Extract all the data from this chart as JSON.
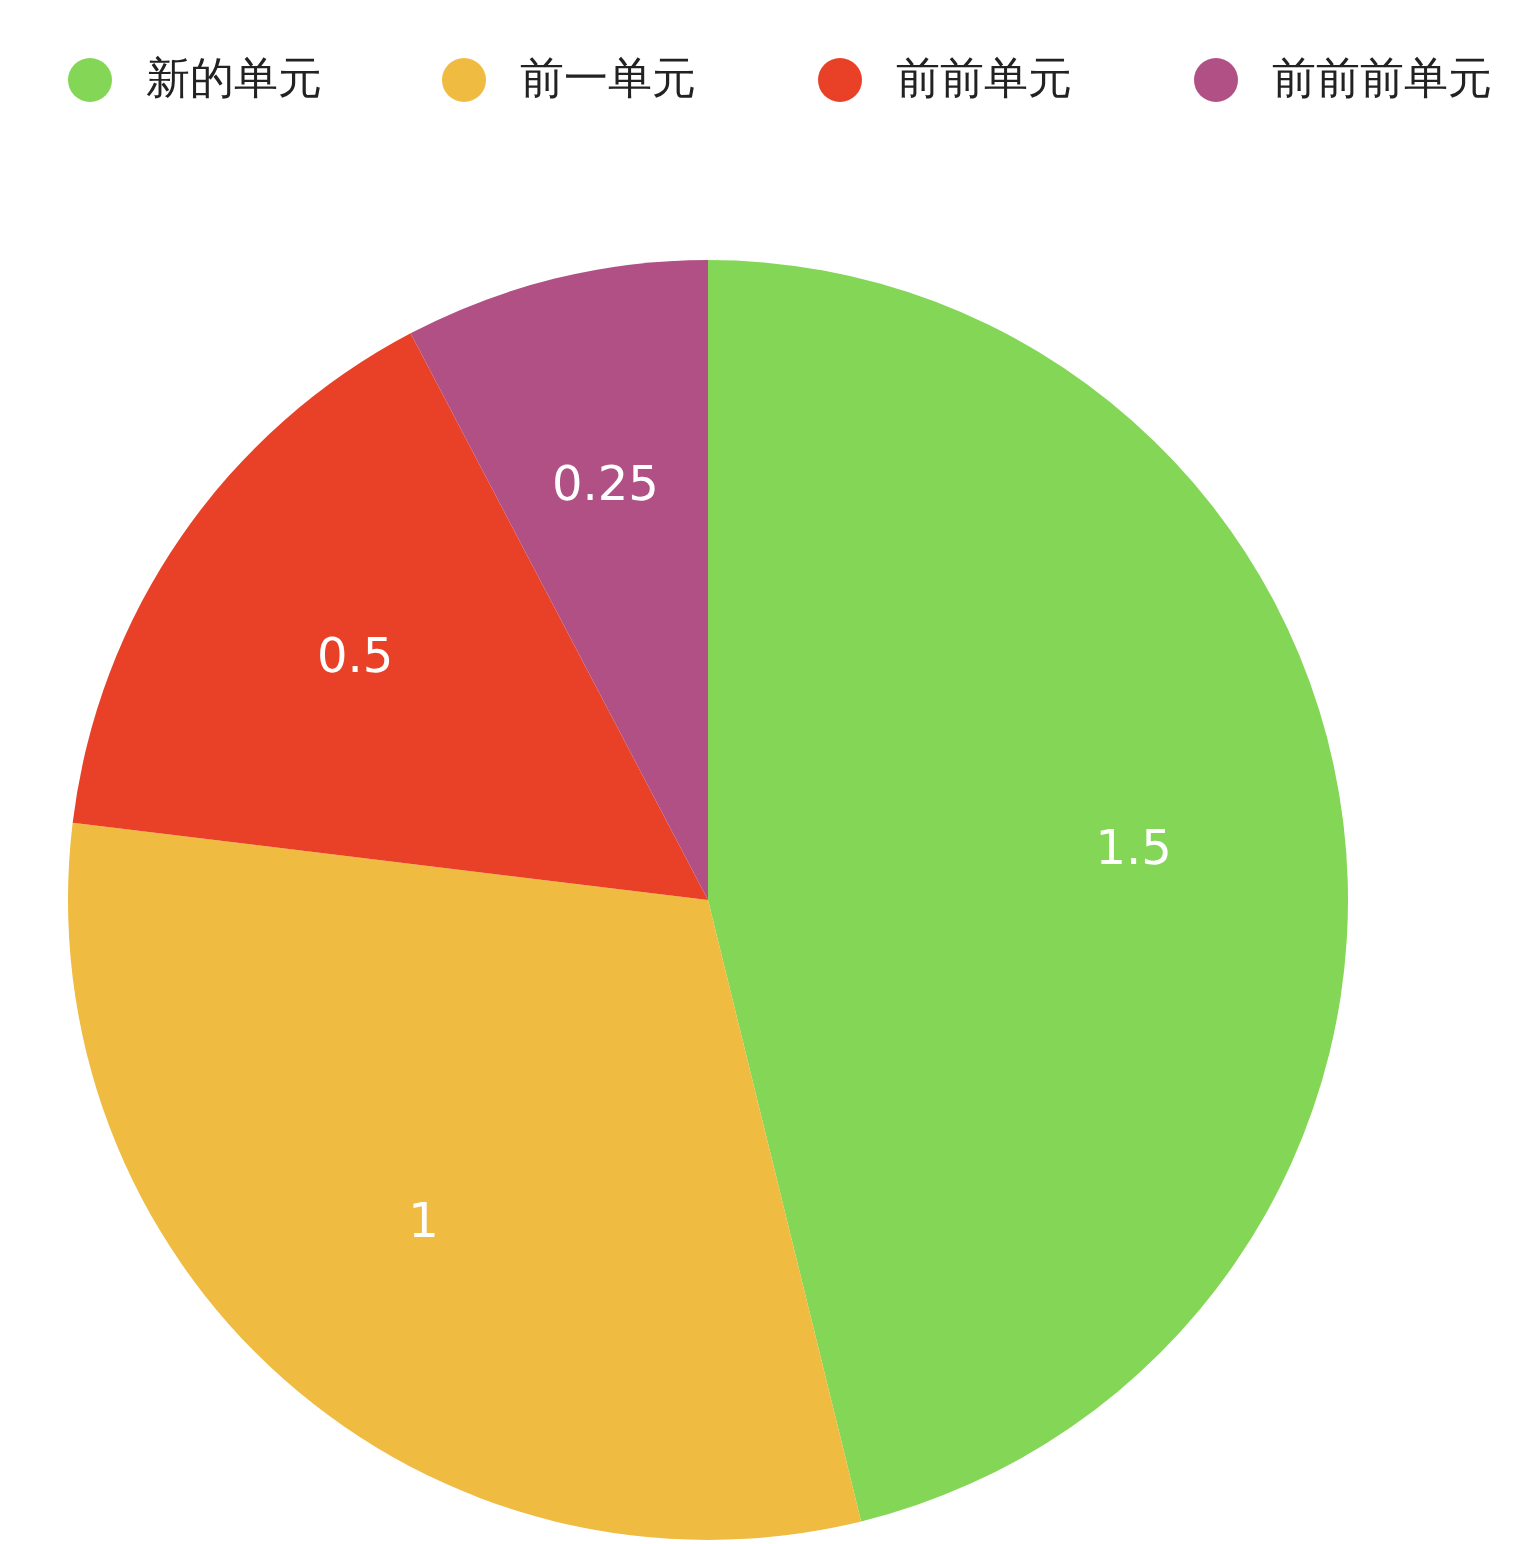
{
  "chart_data": {
    "type": "pie",
    "categories": [
      "新的单元",
      "前一单元",
      "前前单元",
      "前前前单元"
    ],
    "values": [
      1.5,
      1,
      0.5,
      0.25
    ],
    "colors": [
      "#84d656",
      "#efbb40",
      "#e94128",
      "#b05084"
    ],
    "data_labels": true,
    "legend": "top"
  }
}
